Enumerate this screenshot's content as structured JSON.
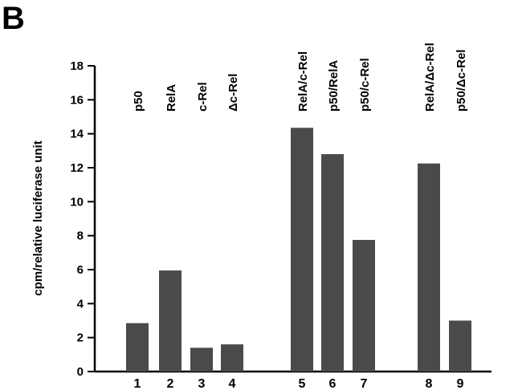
{
  "panel_label": "B",
  "chart_data": {
    "type": "bar",
    "categories": [
      "1",
      "2",
      "3",
      "4",
      "5",
      "6",
      "7",
      "8",
      "9"
    ],
    "bar_labels": [
      "p50",
      "RelA",
      "c-Rel",
      "Δc-Rel",
      "RelA/c-Rel",
      "p50/RelA",
      "p50/c-Rel",
      "RelA/Δc-Rel",
      "p50/Δc-Rel"
    ],
    "values": [
      2.85,
      5.95,
      1.4,
      1.6,
      14.35,
      12.8,
      7.75,
      12.25,
      3.0
    ],
    "ylabel": "cpm/relative luciferase unit",
    "ylim": [
      0,
      18
    ],
    "yticks": [
      0,
      2,
      4,
      6,
      8,
      10,
      12,
      14,
      16,
      18
    ],
    "bar_color": "#4a4a4a",
    "grid": false,
    "legend": "none"
  }
}
